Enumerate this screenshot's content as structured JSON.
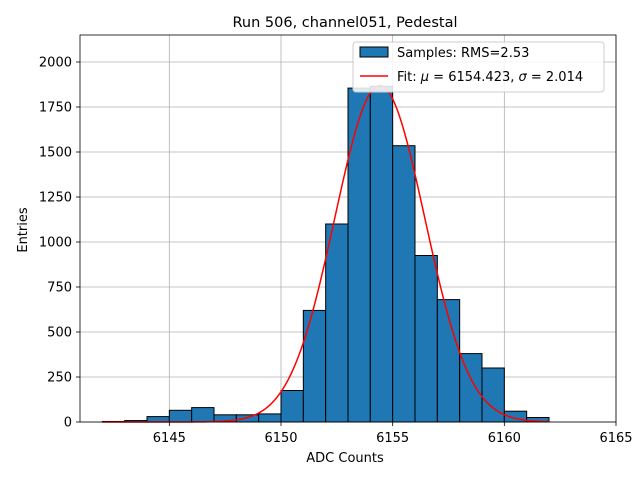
{
  "chart_data": {
    "type": "bar",
    "title": "Run 506, channel051, Pedestal",
    "xlabel": "ADC Counts",
    "ylabel": "Entries",
    "xlim": [
      6141,
      6165
    ],
    "ylim": [
      0,
      2150
    ],
    "xticks": [
      6145,
      6150,
      6155,
      6160,
      6165
    ],
    "yticks": [
      0,
      250,
      500,
      750,
      1000,
      1250,
      1500,
      1750,
      2000
    ],
    "grid": true,
    "legend_position": "top-right",
    "bar_color": "#1f77b4",
    "fit_color": "#ff0000",
    "histogram": {
      "name": "Samples: RMS=2.53",
      "bin_edges": [
        6142,
        6143,
        6144,
        6145,
        6146,
        6147,
        6148,
        6149,
        6150,
        6151,
        6152,
        6153,
        6154,
        6155,
        6156,
        6157,
        6158,
        6159,
        6160,
        6161,
        6162
      ],
      "counts": [
        3,
        8,
        30,
        65,
        80,
        40,
        40,
        45,
        175,
        620,
        1100,
        1855,
        1865,
        1535,
        925,
        680,
        380,
        300,
        60,
        25
      ]
    },
    "fit": {
      "legend_prefix": "Fit: ",
      "legend_mu": "μ",
      "legend_mu_value": " = 6154.423, ",
      "legend_sigma": "σ",
      "legend_sigma_value": " = 2.014",
      "mu": 6154.423,
      "sigma": 2.014,
      "amplitude": 1870,
      "x_range": [
        6142,
        6162
      ]
    }
  }
}
